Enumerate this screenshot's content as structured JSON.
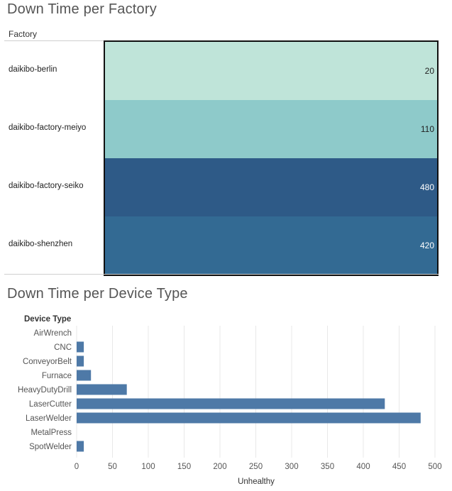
{
  "chart_data": [
    {
      "type": "heatmap",
      "title": "Down Time per Factory",
      "row_header": "Factory",
      "rows": [
        {
          "label": "daikibo-berlin",
          "value": 20,
          "color": "#bfe4d9"
        },
        {
          "label": "daikibo-factory-meiyo",
          "value": 110,
          "color": "#8ecaca"
        },
        {
          "label": "daikibo-factory-seiko",
          "value": 480,
          "color": "#2e5a87"
        },
        {
          "label": "daikibo-shenzhen",
          "value": 420,
          "color": "#336a93"
        }
      ]
    },
    {
      "type": "bar",
      "orientation": "horizontal",
      "title": "Down Time per Device Type",
      "row_header": "Device Type",
      "xlabel": "Unhealthy",
      "categories": [
        "AirWrench",
        "CNC",
        "ConveyorBelt",
        "Furnace",
        "HeavyDutyDrill",
        "LaserCutter",
        "LaserWelder",
        "MetalPress",
        "SpotWelder"
      ],
      "values": [
        0,
        10,
        10,
        20,
        70,
        430,
        480,
        0,
        10
      ],
      "xlim": [
        0,
        500
      ],
      "xticks": [
        0,
        50,
        100,
        150,
        200,
        250,
        300,
        350,
        400,
        450,
        500
      ],
      "grid": true,
      "bar_color": "#4e79a7"
    }
  ]
}
